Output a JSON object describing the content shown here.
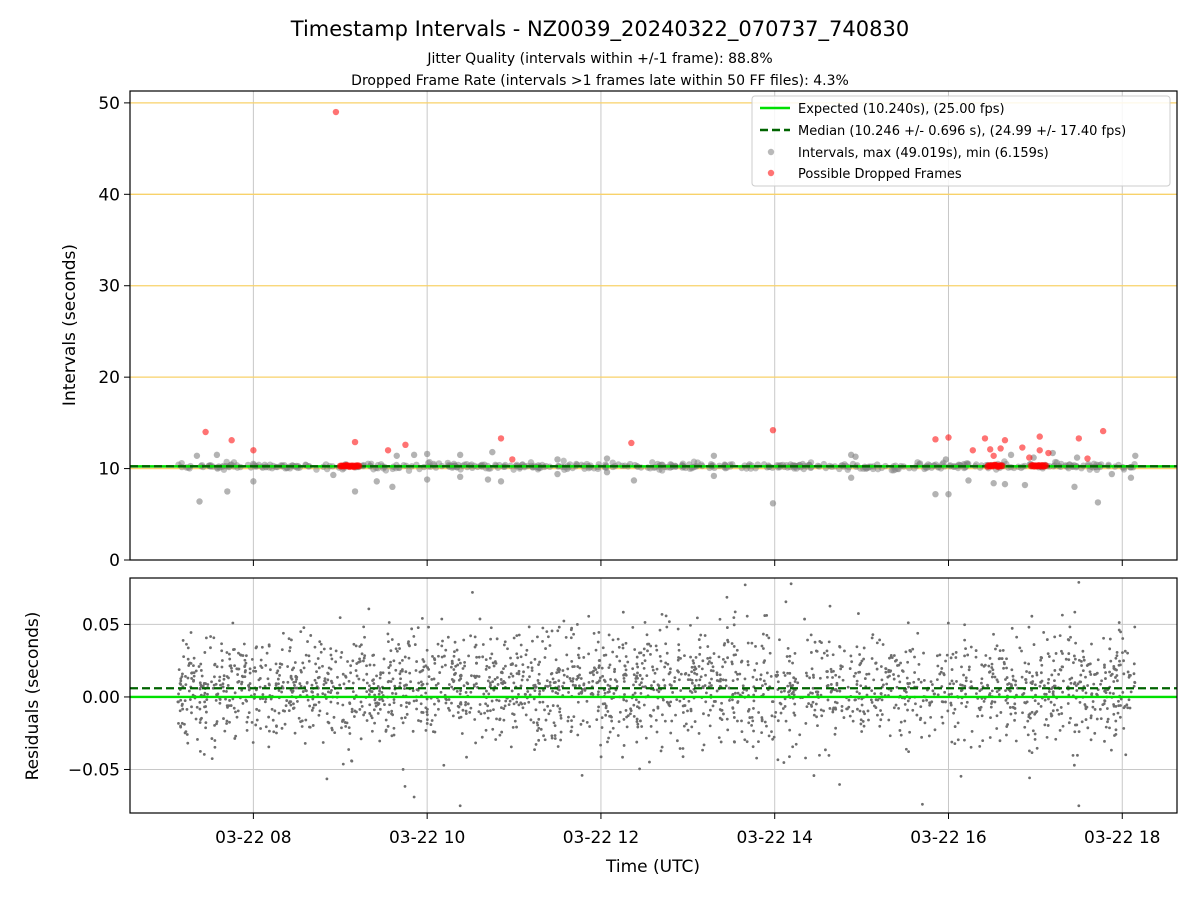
{
  "chart_data": [
    {
      "type": "scatter",
      "title": "Timestamp Intervals - NZ0039_20240322_070737_740830",
      "subtitle_lines": [
        "Jitter Quality (intervals within +/-1 frame): 88.8%",
        "Dropped Frame Rate (intervals >1 frames late within 50 FF files): 4.3%"
      ],
      "ylabel": "Intervals (seconds)",
      "ylim": [
        0,
        51.3
      ],
      "xlim_hours": [
        6.58,
        18.63
      ],
      "x_ticks_hours": [
        8,
        10,
        12,
        14,
        16,
        18
      ],
      "y_ticks": [
        0,
        10,
        20,
        30,
        40,
        50
      ],
      "y_tick_labels": [
        "0",
        "10",
        "20",
        "30",
        "40",
        "50"
      ],
      "grid": true,
      "horizontal_reference_lines": [
        10,
        20,
        30,
        40,
        50
      ],
      "legend_position": "top-right",
      "legend": [
        {
          "label": "Expected (10.240s), (25.00 fps)",
          "style": "solid-line",
          "color": "#00e000"
        },
        {
          "label": "Median (10.246 +/- 0.696 s), (24.99 +/- 17.40 fps)",
          "style": "dashed-line",
          "color": "#006400"
        },
        {
          "label": "Intervals, max (49.019s), min (6.159s)",
          "style": "point",
          "color": "#808080"
        },
        {
          "label": "Possible Dropped Frames",
          "style": "point",
          "color": "#ff0000"
        }
      ],
      "expected_value": 10.24,
      "median_value": 10.246,
      "series": [
        {
          "name": "Intervals, max (49.019s), min (6.159s)",
          "note": "dense band near 10.24 s plus outliers",
          "outliers": [
            [
              7.38,
              6.4
            ],
            [
              7.35,
              11.4
            ],
            [
              7.58,
              11.5
            ],
            [
              7.7,
              7.5
            ],
            [
              8.0,
              8.6
            ],
            [
              8.92,
              9.3
            ],
            [
              9.17,
              7.5
            ],
            [
              9.42,
              8.6
            ],
            [
              9.6,
              8.0
            ],
            [
              9.65,
              11.4
            ],
            [
              9.85,
              11.5
            ],
            [
              10.0,
              8.8
            ],
            [
              10.0,
              11.6
            ],
            [
              10.38,
              9.1
            ],
            [
              10.38,
              11.5
            ],
            [
              10.7,
              8.8
            ],
            [
              10.75,
              11.8
            ],
            [
              10.85,
              8.6
            ],
            [
              11.5,
              11.0
            ],
            [
              11.5,
              9.4
            ],
            [
              12.07,
              9.6
            ],
            [
              12.07,
              11.1
            ],
            [
              12.38,
              8.7
            ],
            [
              13.3,
              9.2
            ],
            [
              13.3,
              11.4
            ],
            [
              13.98,
              6.2
            ],
            [
              14.88,
              11.5
            ],
            [
              14.88,
              9.0
            ],
            [
              14.93,
              11.3
            ],
            [
              15.85,
              7.2
            ],
            [
              16.0,
              7.2
            ],
            [
              15.97,
              11.0
            ],
            [
              16.23,
              8.7
            ],
            [
              16.52,
              8.4
            ],
            [
              16.65,
              8.3
            ],
            [
              16.72,
              11.5
            ],
            [
              16.88,
              8.2
            ],
            [
              16.98,
              11.2
            ],
            [
              17.2,
              11.7
            ],
            [
              17.45,
              8.0
            ],
            [
              17.48,
              11.2
            ],
            [
              17.72,
              6.3
            ],
            [
              17.88,
              9.4
            ],
            [
              18.1,
              9.0
            ],
            [
              18.15,
              11.4
            ]
          ]
        },
        {
          "name": "Possible Dropped Frames",
          "points": [
            [
              7.45,
              14.0
            ],
            [
              7.75,
              13.1
            ],
            [
              8.0,
              12.0
            ],
            [
              8.95,
              49.0
            ],
            [
              9.17,
              12.9
            ],
            [
              9.55,
              12.0
            ],
            [
              9.75,
              12.6
            ],
            [
              10.85,
              13.3
            ],
            [
              10.98,
              11.0
            ],
            [
              12.35,
              12.8
            ],
            [
              13.98,
              14.2
            ],
            [
              15.85,
              13.2
            ],
            [
              16.0,
              13.4
            ],
            [
              16.28,
              12.0
            ],
            [
              16.42,
              13.3
            ],
            [
              16.52,
              11.4
            ],
            [
              16.48,
              12.1
            ],
            [
              16.6,
              12.2
            ],
            [
              16.65,
              13.1
            ],
            [
              16.85,
              12.3
            ],
            [
              16.93,
              11.2
            ],
            [
              17.05,
              12.0
            ],
            [
              17.05,
              13.5
            ],
            [
              17.15,
              11.7
            ],
            [
              17.5,
              13.3
            ],
            [
              17.6,
              11.1
            ],
            [
              17.78,
              14.1
            ]
          ],
          "clusters_near_expected": [
            [
              9.0,
              9.22
            ],
            [
              16.45,
              16.62
            ],
            [
              16.95,
              17.12
            ]
          ]
        }
      ]
    },
    {
      "type": "scatter",
      "title": "",
      "xlabel": "Time (UTC)",
      "ylabel": "Residuals (seconds)",
      "ylim": [
        -0.08,
        0.082
      ],
      "xlim_hours": [
        6.58,
        18.63
      ],
      "x_ticks_hours": [
        8,
        10,
        12,
        14,
        16,
        18
      ],
      "x_tick_labels": [
        "03-22 08",
        "03-22 10",
        "03-22 12",
        "03-22 14",
        "03-22 16",
        "03-22 18"
      ],
      "y_ticks": [
        -0.05,
        0.0,
        0.05
      ],
      "y_tick_labels": [
        "−0.05",
        "0.00",
        "0.05"
      ],
      "grid": true,
      "expected_residual": 0.0,
      "median_residual": 0.006,
      "series": [
        {
          "name": "Residuals",
          "note": "approx. 2400 points, roughly uniform in time, std approx. 0.02 s",
          "x_range_hours": [
            7.13,
            18.15
          ],
          "approx_count": 2400,
          "mean": 0.006,
          "std": 0.02,
          "extremes": [
            [
              17.5,
              0.079
            ],
            [
              9.85,
              -0.069
            ],
            [
              10.38,
              -0.075
            ],
            [
              17.5,
              -0.075
            ],
            [
              15.7,
              -0.074
            ]
          ]
        }
      ]
    }
  ]
}
